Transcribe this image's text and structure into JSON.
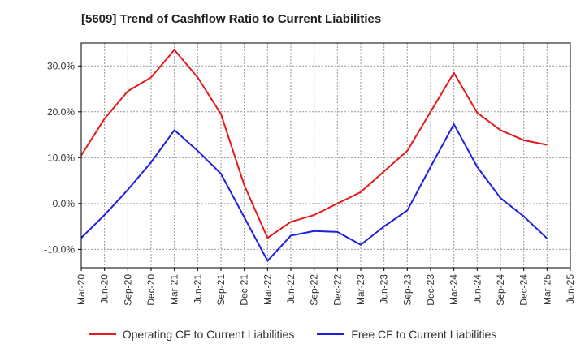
{
  "title": "[5609]  Trend of Cashflow Ratio to Current Liabilities",
  "chart_data": {
    "type": "line",
    "x": [
      "Mar-20",
      "Jun-20",
      "Sep-20",
      "Dec-20",
      "Mar-21",
      "Jun-21",
      "Sep-21",
      "Dec-21",
      "Mar-22",
      "Jun-22",
      "Sep-22",
      "Dec-22",
      "Mar-23",
      "Jun-23",
      "Sep-23",
      "Dec-23",
      "Mar-24",
      "Jun-24",
      "Sep-24",
      "Dec-24",
      "Mar-25",
      "Jun-25"
    ],
    "series": [
      {
        "name": "Operating CF to Current Liabilities",
        "color": "#e41a1c",
        "values": [
          10.5,
          18.5,
          24.5,
          27.5,
          33.5,
          27.5,
          19.5,
          4.0,
          -7.5,
          -4.0,
          -2.5,
          0.0,
          2.5,
          7.0,
          11.5,
          20.0,
          28.5,
          19.8,
          16.0,
          13.8,
          12.8,
          null
        ]
      },
      {
        "name": "Free CF to Current Liabilities",
        "color": "#1f1fdd",
        "values": [
          -7.5,
          -2.5,
          3.0,
          9.0,
          16.0,
          11.5,
          6.5,
          -3.0,
          -12.5,
          -7.0,
          -6.0,
          -6.2,
          -9.0,
          -5.0,
          -1.5,
          8.0,
          17.3,
          8.0,
          1.2,
          -2.8,
          -7.6,
          null
        ]
      }
    ],
    "yticks": [
      -10,
      0,
      10,
      20,
      30
    ],
    "ytick_labels": [
      "-10.0%",
      "0.0%",
      "10.0%",
      "20.0%",
      "30.0%"
    ],
    "ylim": [
      -14,
      35
    ],
    "grid": true,
    "legend": "bottom"
  }
}
